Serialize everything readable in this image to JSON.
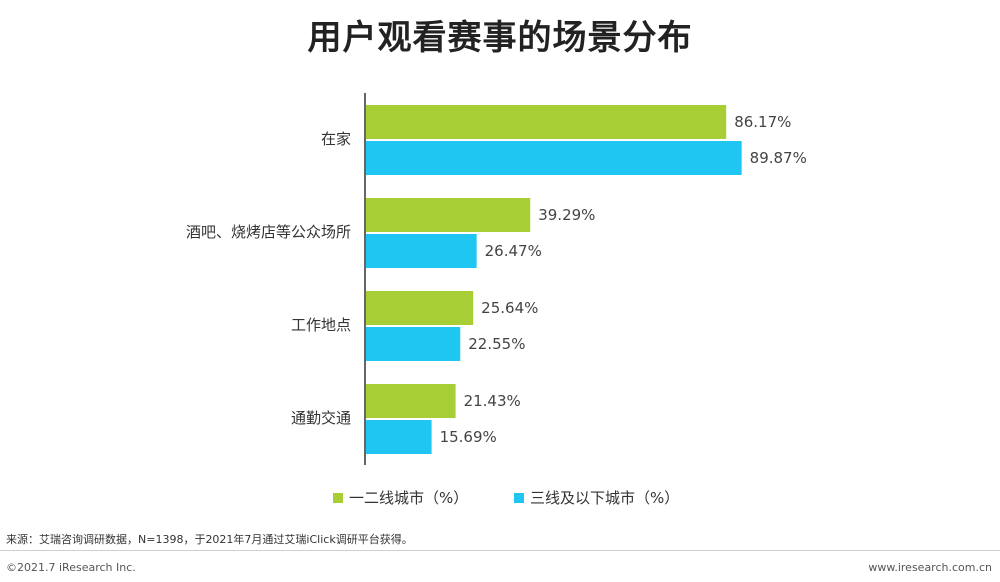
{
  "title": "用户观看赛事的场景分布",
  "colors": {
    "series1": "#a7cf35",
    "series2": "#1fc6f2"
  },
  "chart_data": {
    "type": "bar",
    "orientation": "horizontal",
    "categories": [
      "在家",
      "酒吧、烧烤店等公众场所",
      "工作地点",
      "通勤交通"
    ],
    "series": [
      {
        "name": "一二线城市（%）",
        "values": [
          86.17,
          39.29,
          25.64,
          21.43
        ]
      },
      {
        "name": "三线及以下城市（%）",
        "values": [
          89.87,
          26.47,
          22.55,
          15.69
        ]
      }
    ],
    "value_labels": [
      [
        "86.17%",
        "39.29%",
        "25.64%",
        "21.43%"
      ],
      [
        "89.87%",
        "26.47%",
        "22.55%",
        "15.69%"
      ]
    ],
    "xlim": [
      0,
      100
    ],
    "grid": false,
    "legend_position": "bottom"
  },
  "source": "来源：艾瑞咨询调研数据，N=1398，于2021年7月通过艾瑞iClick调研平台获得。",
  "footer": {
    "copyright": "©2021.7 iResearch Inc.",
    "website": "www.iresearch.com.cn"
  }
}
